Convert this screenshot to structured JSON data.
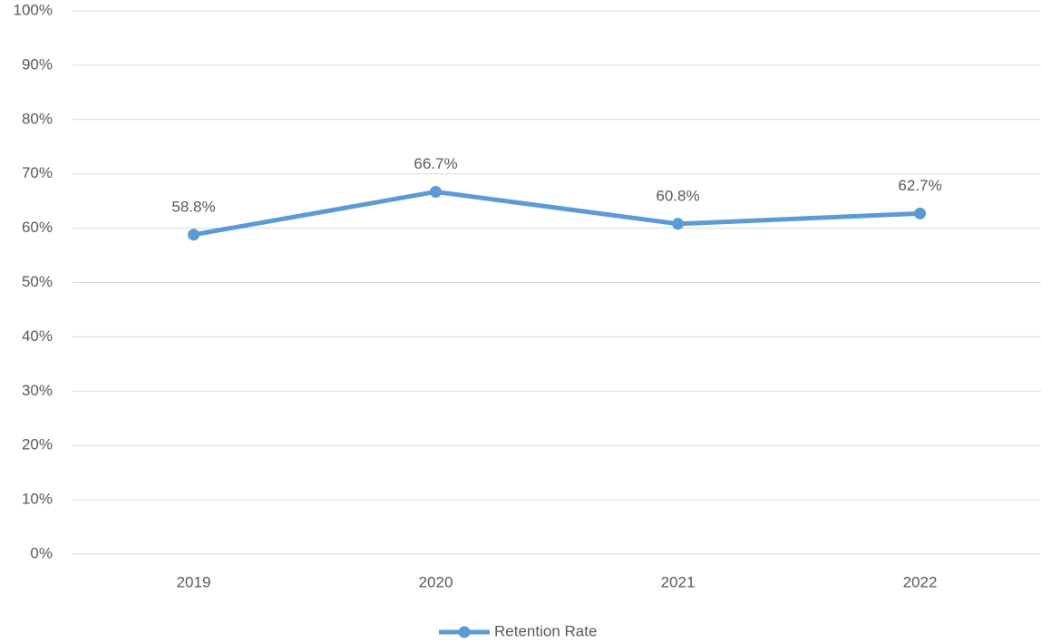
{
  "chart_data": {
    "type": "line",
    "categories": [
      "2019",
      "2020",
      "2021",
      "2022"
    ],
    "series": [
      {
        "name": "Retention Rate",
        "color": "#5b9bd5",
        "values": [
          58.8,
          66.7,
          60.8,
          62.7
        ],
        "value_labels": [
          "58.8%",
          "66.7%",
          "60.8%",
          "62.7%"
        ]
      }
    ],
    "ylim": [
      0,
      100
    ],
    "yticks": [
      {
        "value": 0,
        "label": "0%"
      },
      {
        "value": 10,
        "label": "10%"
      },
      {
        "value": 20,
        "label": "20%"
      },
      {
        "value": 30,
        "label": "30%"
      },
      {
        "value": 40,
        "label": "40%"
      },
      {
        "value": 50,
        "label": "50%"
      },
      {
        "value": 60,
        "label": "60%"
      },
      {
        "value": 70,
        "label": "70%"
      },
      {
        "value": 80,
        "label": "80%"
      },
      {
        "value": 90,
        "label": "90%"
      },
      {
        "value": 100,
        "label": "100%"
      }
    ],
    "grid": true,
    "legend": "bottom"
  }
}
